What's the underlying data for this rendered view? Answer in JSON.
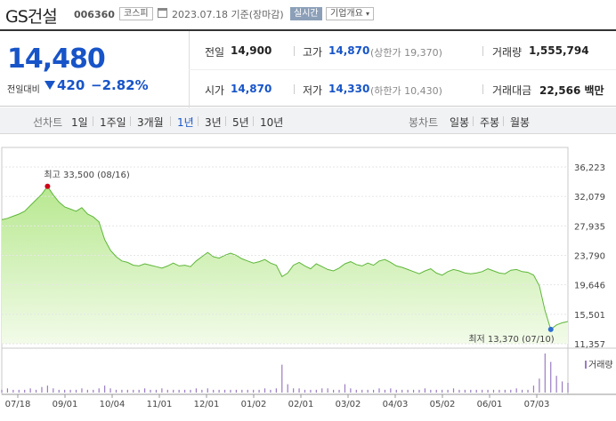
{
  "header": {
    "stock_name": "GS건설",
    "stock_code": "006360",
    "market": "코스피",
    "date": "2023.07.18 기준(장마감)",
    "realtime_label": "실시간",
    "company_info_label": "기업개요"
  },
  "quote": {
    "price": "14,480",
    "change_label": "전일대비",
    "change": "420",
    "change_pct": "−2.82%",
    "prev_close_label": "전일",
    "prev_close": "14,900",
    "high_label": "고가",
    "high": "14,870",
    "upper_limit": "(상한가 19,370)",
    "volume_label": "거래량",
    "volume": "1,555,794",
    "open_label": "시가",
    "open": "14,870",
    "low_label": "저가",
    "low": "14,330",
    "lower_limit": "(하한가 10,430)",
    "amount_label": "거래대금",
    "amount": "22,566 백만"
  },
  "tabs": {
    "line_header": "선차트",
    "line": [
      "1일",
      "1주일",
      "3개월",
      "1년",
      "3년",
      "5년",
      "10년"
    ],
    "active": "1년",
    "candle_header": "봉차트",
    "candle": [
      "일봉",
      "주봉",
      "월봉"
    ]
  },
  "colors": {
    "down": "#1754c8",
    "area_fill_top": "#a8e07c",
    "area_line": "#5fb73a",
    "high_marker": "#d0021b",
    "low_marker": "#2d6fcf"
  },
  "chart_data": {
    "type": "area",
    "title": "",
    "y_ticks": [
      "36,223",
      "32,079",
      "27,935",
      "23,790",
      "19,646",
      "15,501",
      "11,357"
    ],
    "ylim": [
      11357,
      36223
    ],
    "x_ticks": [
      "07/18",
      "09/01",
      "10/04",
      "11/01",
      "12/01",
      "01/02",
      "02/01",
      "03/02",
      "04/03",
      "05/02",
      "06/01",
      "07/03"
    ],
    "annotations": {
      "high": {
        "label": "최고 33,500 (08/16)",
        "value": 33500,
        "date": "08/16"
      },
      "low": {
        "label": "최저 13,370 (07/10)",
        "value": 13370,
        "date": "07/10"
      }
    },
    "series": [
      {
        "values": [
          28800,
          29000,
          29300,
          29600,
          30000,
          30800,
          31600,
          32400,
          33500,
          32300,
          31300,
          30600,
          30300,
          30000,
          30500,
          29600,
          29200,
          28500,
          26000,
          24500,
          23600,
          23000,
          22800,
          22400,
          22300,
          22600,
          22400,
          22200,
          22000,
          22300,
          22700,
          22300,
          22400,
          22200,
          23000,
          23600,
          24200,
          23600,
          23400,
          23800,
          24100,
          23800,
          23300,
          23000,
          22700,
          22900,
          23200,
          22700,
          22400,
          20800,
          21300,
          22400,
          22800,
          22300,
          21900,
          22600,
          22200,
          21800,
          21600,
          22000,
          22600,
          22900,
          22500,
          22300,
          22700,
          22400,
          23000,
          23200,
          22800,
          22300,
          22100,
          21800,
          21500,
          21200,
          21600,
          21900,
          21300,
          21000,
          21500,
          21800,
          21600,
          21300,
          21200,
          21300,
          21500,
          21900,
          21600,
          21300,
          21200,
          21700,
          21800,
          21500,
          21400,
          21000,
          19500,
          16000,
          13370,
          14000,
          14300,
          14480
        ]
      }
    ],
    "volume_label": "거래량",
    "volume_relative": [
      2,
      3,
      2,
      2,
      2,
      3,
      2,
      4,
      5,
      3,
      2,
      2,
      2,
      2,
      3,
      2,
      2,
      3,
      5,
      3,
      2,
      2,
      2,
      2,
      2,
      3,
      2,
      2,
      3,
      2,
      2,
      2,
      2,
      2,
      3,
      2,
      3,
      2,
      2,
      2,
      2,
      2,
      2,
      2,
      2,
      2,
      3,
      2,
      3,
      20,
      6,
      3,
      3,
      2,
      2,
      2,
      3,
      3,
      2,
      2,
      6,
      3,
      2,
      2,
      2,
      2,
      3,
      2,
      3,
      2,
      2,
      2,
      2,
      2,
      3,
      2,
      2,
      2,
      2,
      3,
      2,
      2,
      2,
      2,
      2,
      2,
      2,
      2,
      2,
      2,
      3,
      2,
      2,
      5,
      10,
      28,
      22,
      12,
      8,
      7
    ]
  }
}
